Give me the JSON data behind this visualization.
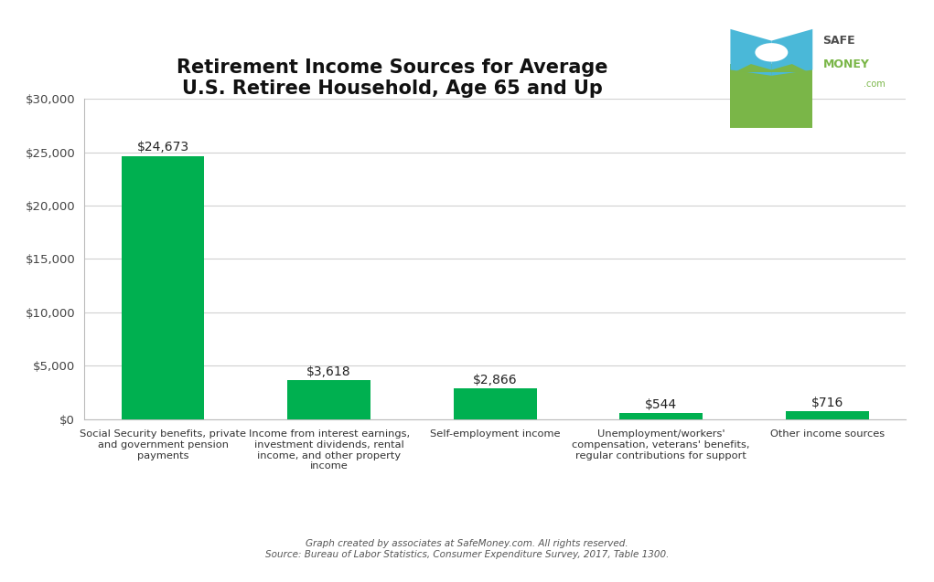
{
  "title_line1": "Retirement Income Sources for Average",
  "title_line2": "U.S. Retiree Household, Age 65 and Up",
  "categories": [
    "Social Security benefits, private\nand government pension\npayments",
    "Income from interest earnings,\ninvestment dividends, rental\nincome, and other property\nincome",
    "Self-employment income",
    "Unemployment/workers'\ncompensation, veterans' benefits,\nregular contributions for support",
    "Other income sources"
  ],
  "values": [
    24673,
    3618,
    2866,
    544,
    716
  ],
  "labels": [
    "$24,673",
    "$3,618",
    "$2,866",
    "$544",
    "$716"
  ],
  "bar_color": "#00b050",
  "background_color": "#ffffff",
  "ylim": [
    0,
    30000
  ],
  "yticks": [
    0,
    5000,
    10000,
    15000,
    20000,
    25000,
    30000
  ],
  "ytick_labels": [
    "$0",
    "$5,000",
    "$10,000",
    "$15,000",
    "$20,000",
    "$25,000",
    "$30,000"
  ],
  "title_fontsize": 15,
  "label_fontsize": 10,
  "tick_label_fontsize": 9.5,
  "xtick_fontsize": 8.2,
  "footer_line1": "Graph created by associates at SafeMoney.com. All rights reserved.",
  "footer_line2": "Source: Bureau of Labor Statistics, Consumer Expenditure Survey, 2017, Table 1300.",
  "footer_fontsize": 7.5,
  "safe_color": "#4d4d4d",
  "money_color": "#7ab648",
  "com_color": "#7ab648"
}
